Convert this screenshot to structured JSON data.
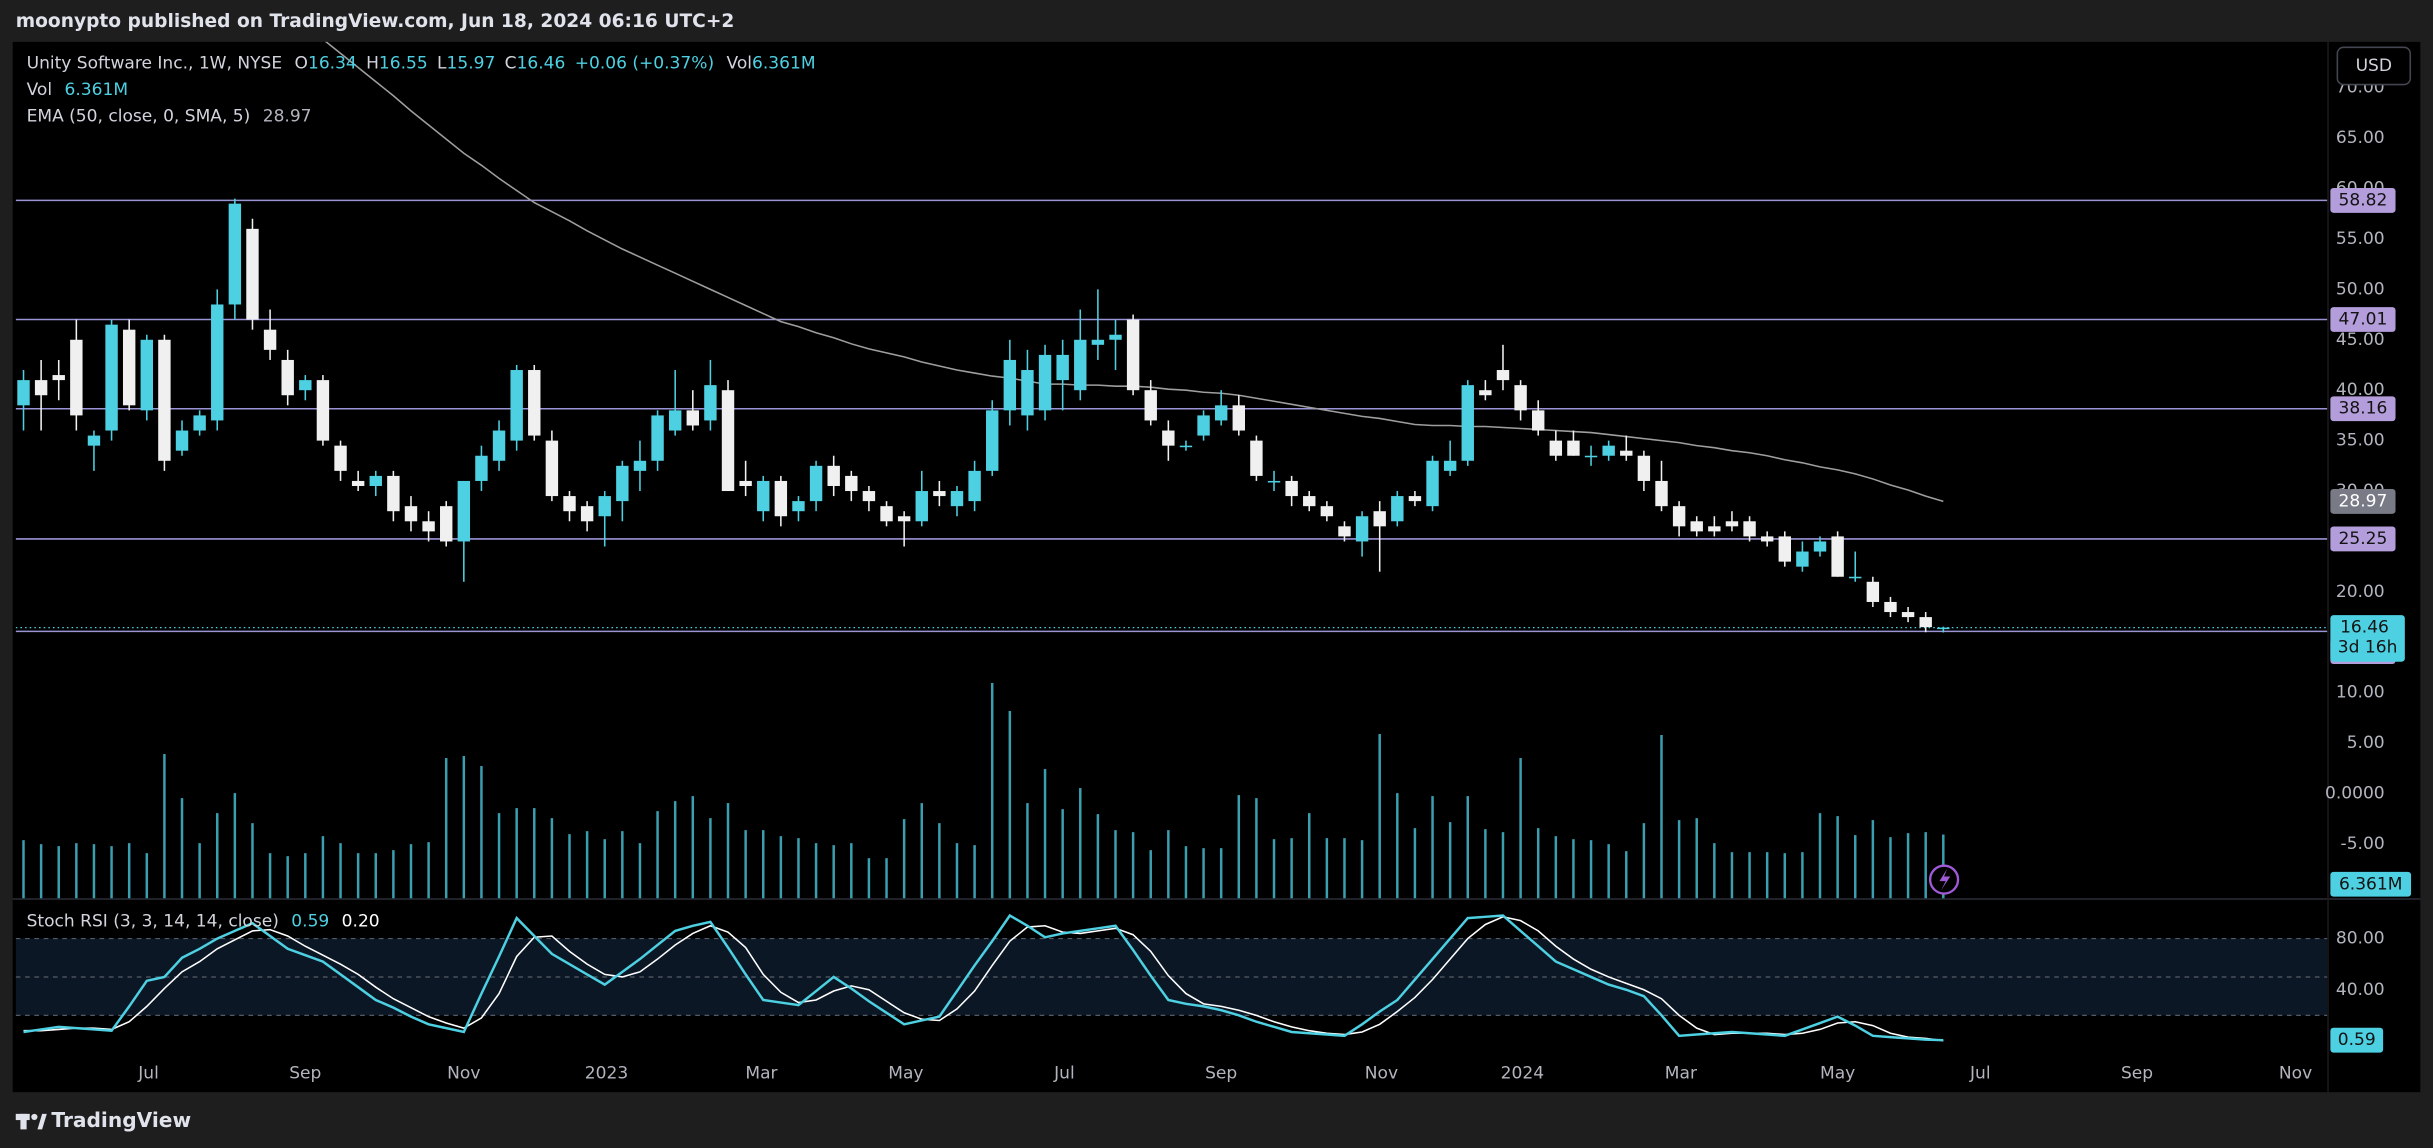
{
  "header": {
    "published": "moonypto published on TradingView.com, Jun 18, 2024 06:16 UTC+2"
  },
  "footer": "TradingView",
  "chart_data": {
    "type": "candlestick",
    "currency": "USD",
    "countdown": "3d 16h",
    "legend": {
      "symbol": "Unity Software Inc., 1W, NYSE",
      "o": "O",
      "h": "H",
      "l": "L",
      "c": "C",
      "change": "+0.06 (+0.37%)",
      "vol": "Vol",
      "vol_value": "6.361M"
    },
    "colors": {
      "up": "#4dd0e1",
      "down": "#f0f0f0",
      "level": "#9a94d6",
      "tag": "#b39ddb",
      "volume": "#3a9fb0"
    },
    "candles": [
      [
        38.5,
        42,
        36,
        41
      ],
      [
        41,
        43,
        36,
        39.5
      ],
      [
        41.5,
        43,
        39,
        41
      ],
      [
        45,
        47,
        36,
        37.5
      ],
      [
        34.5,
        36,
        32,
        35.5
      ],
      [
        36,
        47,
        35,
        46.5
      ],
      [
        46,
        47,
        38,
        38.5
      ],
      [
        38,
        45.5,
        37,
        45
      ],
      [
        45,
        45.5,
        32,
        33
      ],
      [
        34,
        37,
        33.5,
        36
      ],
      [
        36,
        38,
        35.5,
        37.5
      ],
      [
        37,
        50,
        36,
        48.5
      ],
      [
        48.5,
        59,
        47,
        58.5
      ],
      [
        56,
        57,
        46,
        47
      ],
      [
        46,
        48,
        43,
        44
      ],
      [
        43,
        44,
        38.5,
        39.5
      ],
      [
        40,
        41.5,
        39,
        41
      ],
      [
        41,
        41.5,
        34.5,
        35
      ],
      [
        34.5,
        35,
        31,
        32
      ],
      [
        31,
        32,
        30,
        30.5
      ],
      [
        30.5,
        32,
        29.5,
        31.5
      ],
      [
        31.5,
        32,
        27,
        28
      ],
      [
        28.5,
        29.5,
        26,
        27
      ],
      [
        27,
        28,
        25,
        26
      ],
      [
        28.5,
        29,
        24.5,
        25
      ],
      [
        25,
        31,
        21,
        31
      ],
      [
        31,
        34.5,
        30,
        33.5
      ],
      [
        33,
        37,
        32,
        36
      ],
      [
        35,
        42.5,
        34,
        42
      ],
      [
        42,
        42.5,
        35,
        35.5
      ],
      [
        35,
        36,
        29,
        29.5
      ],
      [
        29.5,
        30,
        27,
        28
      ],
      [
        28.5,
        29,
        26,
        27
      ],
      [
        27.5,
        30,
        24.5,
        29.5
      ],
      [
        29,
        33,
        27,
        32.5
      ],
      [
        32,
        35,
        30,
        33
      ],
      [
        33,
        38,
        32,
        37.5
      ],
      [
        36,
        42,
        35.5,
        38
      ],
      [
        38,
        40,
        36,
        36.5
      ],
      [
        37,
        43,
        36,
        40.5
      ],
      [
        40,
        41,
        30,
        30
      ],
      [
        31,
        33,
        29.5,
        30.5
      ],
      [
        28,
        31.5,
        27,
        31
      ],
      [
        31,
        31.5,
        26.5,
        27.5
      ],
      [
        28,
        29.5,
        27,
        29
      ],
      [
        29,
        33,
        28,
        32.5
      ],
      [
        32.5,
        33.5,
        29.5,
        30.5
      ],
      [
        31.5,
        32,
        29,
        30
      ],
      [
        30,
        30.5,
        28,
        29
      ],
      [
        28.5,
        29,
        26.5,
        27
      ],
      [
        27.5,
        28,
        24.5,
        27
      ],
      [
        27,
        32,
        26.5,
        30
      ],
      [
        30,
        31,
        28.5,
        29.5
      ],
      [
        28.5,
        30.5,
        27.5,
        30
      ],
      [
        29,
        33,
        28,
        32
      ],
      [
        32,
        39,
        31.5,
        38
      ],
      [
        38,
        45,
        36.5,
        43
      ],
      [
        37.5,
        44,
        36,
        42
      ],
      [
        38,
        44.5,
        37,
        43.5
      ],
      [
        41,
        45,
        38,
        43.5
      ],
      [
        40,
        48,
        39,
        45
      ],
      [
        44.5,
        50,
        43,
        45
      ],
      [
        45,
        47,
        42,
        45.5
      ],
      [
        47,
        47.5,
        39.5,
        40
      ],
      [
        40,
        41,
        36.5,
        37
      ],
      [
        36,
        37,
        33,
        34.5
      ],
      [
        34.5,
        35,
        34,
        34.5
      ],
      [
        35.5,
        38,
        35,
        37.5
      ],
      [
        37,
        40,
        36.5,
        38.5
      ],
      [
        38.5,
        39.5,
        35.5,
        36
      ],
      [
        35,
        35.5,
        31,
        31.5
      ],
      [
        31,
        32,
        30,
        31
      ],
      [
        31,
        31.5,
        28.5,
        29.5
      ],
      [
        29.5,
        30,
        28,
        28.5
      ],
      [
        28.5,
        29,
        27,
        27.5
      ],
      [
        26.5,
        27,
        25,
        25.5
      ],
      [
        25,
        28,
        23.5,
        27.5
      ],
      [
        28,
        29,
        22,
        26.5
      ],
      [
        27,
        30,
        26.5,
        29.5
      ],
      [
        29.5,
        30,
        28.5,
        29
      ],
      [
        28.5,
        33.5,
        28,
        33
      ],
      [
        32,
        35,
        31.5,
        33
      ],
      [
        33,
        41,
        32.5,
        40.5
      ],
      [
        40,
        41,
        39,
        39.5
      ],
      [
        42,
        44.5,
        40,
        41
      ],
      [
        40.5,
        41,
        37,
        38
      ],
      [
        38,
        39,
        35.5,
        36
      ],
      [
        35,
        36,
        33,
        33.5
      ],
      [
        35,
        36,
        33.5,
        33.5
      ],
      [
        33.5,
        34.5,
        32.5,
        33.5
      ],
      [
        33.5,
        35,
        33,
        34.5
      ],
      [
        34,
        35.5,
        33,
        33.5
      ],
      [
        33.5,
        34,
        30,
        31
      ],
      [
        31,
        33,
        28,
        28.5
      ],
      [
        28.5,
        29,
        25.5,
        26.5
      ],
      [
        27,
        27.5,
        25.5,
        26
      ],
      [
        26.5,
        27.5,
        25.5,
        26
      ],
      [
        27,
        28,
        26,
        26.5
      ],
      [
        27,
        27.5,
        25,
        25.5
      ],
      [
        25.5,
        26,
        24.5,
        25
      ],
      [
        25.5,
        26,
        22.5,
        23
      ],
      [
        22.5,
        25,
        22,
        24
      ],
      [
        24,
        25.5,
        23.5,
        25
      ],
      [
        25.5,
        26,
        21.5,
        21.5
      ],
      [
        21.5,
        24,
        21,
        21.5
      ],
      [
        21,
        21.5,
        18.5,
        19
      ],
      [
        19,
        19.5,
        17.5,
        18
      ],
      [
        18,
        18.5,
        17,
        17.5
      ],
      [
        17.5,
        18,
        16,
        16.5
      ],
      [
        16.34,
        16.55,
        15.97,
        16.46
      ]
    ],
    "levels": [
      58.82,
      47.01,
      38.16,
      25.25,
      16.08
    ],
    "ylim": [
      -10.38,
      74.54
    ],
    "yticks": [
      {
        "value": 70,
        "label": "70.00"
      },
      {
        "value": 65,
        "label": "65.00"
      },
      {
        "value": 60,
        "label": "60.00"
      },
      {
        "value": 55,
        "label": "55.00"
      },
      {
        "value": 50,
        "label": "50.00"
      },
      {
        "value": 45,
        "label": "45.00"
      },
      {
        "value": 40,
        "label": "40.00"
      },
      {
        "value": 35,
        "label": "35.00"
      },
      {
        "value": 30,
        "label": "30.00"
      },
      {
        "value": 20,
        "label": "20.00"
      },
      {
        "value": 10,
        "label": "10.00"
      },
      {
        "value": 5,
        "label": "5.00"
      },
      {
        "value": 0,
        "label": "0.0000"
      },
      {
        "value": -5,
        "label": "-5.00"
      }
    ],
    "xlim": [
      -0.44,
      130.8
    ],
    "xticks": [
      {
        "value": 7.1,
        "label": "Jul"
      },
      {
        "value": 16.0,
        "label": "Sep"
      },
      {
        "value": 25.0,
        "label": "Nov"
      },
      {
        "value": 33.1,
        "label": "2023"
      },
      {
        "value": 41.9,
        "label": "Mar"
      },
      {
        "value": 50.1,
        "label": "May"
      },
      {
        "value": 59.1,
        "label": "Jul"
      },
      {
        "value": 68.0,
        "label": "Sep"
      },
      {
        "value": 77.1,
        "label": "Nov"
      },
      {
        "value": 85.1,
        "label": "2024"
      },
      {
        "value": 94.1,
        "label": "Mar"
      },
      {
        "value": 103.0,
        "label": "May"
      },
      {
        "value": 111.1,
        "label": "Jul"
      },
      {
        "value": 120.0,
        "label": "Sep"
      },
      {
        "value": 129.0,
        "label": "Nov"
      }
    ],
    "ema": {
      "label": "EMA (50, close, 0, SMA, 5)",
      "color": "#9e9e9e",
      "values": [
        null,
        null,
        null,
        null,
        null,
        null,
        null,
        null,
        null,
        null,
        null,
        null,
        null,
        null,
        null,
        null,
        null,
        74.8,
        73.4,
        72,
        70.6,
        69.2,
        67.7,
        66.3,
        64.9,
        63.5,
        62.3,
        61,
        59.8,
        58.6,
        57.7,
        56.8,
        55.8,
        54.9,
        54,
        53.2,
        52.4,
        51.6,
        50.8,
        50,
        49.2,
        48.4,
        47.6,
        46.8,
        46.3,
        45.7,
        45.2,
        44.6,
        44.1,
        43.7,
        43.3,
        42.8,
        42.4,
        42,
        41.7,
        41.4,
        41.2,
        40.9,
        40.6,
        40.6,
        40.5,
        40.5,
        40.4,
        40.4,
        40.3,
        40.1,
        40,
        39.8,
        39.7,
        39.5,
        39.2,
        38.9,
        38.6,
        38.3,
        38,
        37.7,
        37.4,
        37.2,
        36.9,
        36.6,
        36.5,
        36.5,
        36.4,
        36.4,
        36.3,
        36.2,
        36.1,
        36,
        35.9,
        35.8,
        35.6,
        35.4,
        35.2,
        35,
        34.8,
        34.5,
        34.3,
        34,
        33.8,
        33.5,
        33.1,
        32.8,
        32.4,
        32.1,
        31.7,
        31.2,
        30.6,
        30.1,
        29.5,
        28.97
      ]
    },
    "volume": {
      "vlim": [
        0,
        22
      ],
      "values": [
        5.8,
        5.4,
        5.2,
        5.5,
        5.4,
        5.2,
        5.5,
        4.5,
        14.4,
        10,
        5.5,
        8.5,
        10.5,
        7.5,
        4.5,
        4.2,
        4.5,
        6.2,
        5.5,
        4.5,
        4.5,
        4.8,
        5.4,
        5.6,
        14,
        14.2,
        13.2,
        8.5,
        9,
        9,
        8,
        6.4,
        6.7,
        5.9,
        6.7,
        5.5,
        8.7,
        9.7,
        10.2,
        8,
        9.5,
        6.8,
        6.8,
        6.2,
        6,
        5.5,
        5.3,
        5.5,
        4,
        4,
        7.9,
        9.5,
        7.5,
        5.5,
        5.3,
        21.5,
        18.7,
        9.5,
        12.9,
        8.9,
        11,
        8.4,
        6.8,
        6.6,
        4.8,
        6.8,
        5.2,
        5,
        5,
        10.3,
        10,
        5.9,
        6,
        8.5,
        6,
        6,
        5.8,
        16.4,
        10.5,
        7,
        10.2,
        7.6,
        10.2,
        6.9,
        6.6,
        14,
        7,
        6.2,
        5.9,
        5.8,
        5.4,
        4.7,
        7.5,
        16.3,
        7.8,
        8,
        5.5,
        4.6,
        4.6,
        4.6,
        4.5,
        4.6,
        8.5,
        8.2,
        6.3,
        7.8,
        6.1,
        6.5,
        6.6,
        6.361
      ]
    },
    "stoch": {
      "label": "Stoch RSI (3, 3, 14, 14, close)",
      "k_color": "#4dd0e1",
      "d_color": "#ffffff",
      "band_color": "#0c1726",
      "ylim": [
        -38.8,
        110.3
      ],
      "yticks": [
        {
          "value": 80,
          "label": "80.00"
        },
        {
          "value": 40,
          "label": "40.00"
        }
      ],
      "bands": [
        80,
        50,
        20
      ],
      "d_label": "0.20",
      "k": [
        7,
        9,
        11,
        10,
        9,
        8,
        27,
        47,
        50,
        65,
        72,
        80,
        86,
        92,
        82,
        72,
        67,
        62,
        52,
        42,
        32,
        26,
        19,
        13,
        10,
        7,
        37,
        66,
        96,
        82,
        68,
        60,
        52,
        44,
        54,
        64,
        75,
        86,
        90,
        93,
        73,
        52,
        32,
        30,
        28,
        39,
        50,
        41,
        31,
        22,
        13,
        16,
        19,
        39,
        59,
        78,
        98,
        90,
        81,
        84,
        86,
        88,
        90,
        71,
        51,
        32,
        29,
        27,
        24,
        20,
        15,
        11,
        7,
        6,
        5,
        4,
        13,
        23,
        32,
        48,
        64,
        80,
        96,
        97,
        98,
        86,
        74,
        62,
        56,
        50,
        44,
        40,
        35,
        20,
        4,
        5,
        6,
        7,
        6,
        5,
        4,
        9,
        14,
        19,
        12,
        4,
        3,
        2,
        1,
        0.59
      ],
      "d": [
        8,
        8,
        9,
        10,
        10,
        9,
        15,
        27,
        41,
        54,
        62,
        72,
        79,
        86,
        87,
        82,
        74,
        67,
        60,
        52,
        42,
        33,
        26,
        19,
        14,
        10,
        18,
        37,
        66,
        81,
        82,
        70,
        60,
        52,
        50,
        54,
        64,
        75,
        84,
        90,
        85,
        73,
        52,
        38,
        30,
        32,
        39,
        43,
        40,
        31,
        22,
        17,
        16,
        25,
        39,
        59,
        78,
        89,
        90,
        85,
        84,
        86,
        88,
        83,
        70,
        51,
        37,
        29,
        27,
        24,
        20,
        15,
        11,
        8,
        6,
        5,
        7,
        13,
        23,
        34,
        48,
        64,
        80,
        91,
        97,
        94,
        86,
        74,
        64,
        56,
        50,
        45,
        40,
        33,
        20,
        10,
        5,
        6,
        6,
        6,
        5,
        6,
        9,
        14,
        15,
        12,
        6,
        3,
        2,
        0.2
      ]
    }
  }
}
